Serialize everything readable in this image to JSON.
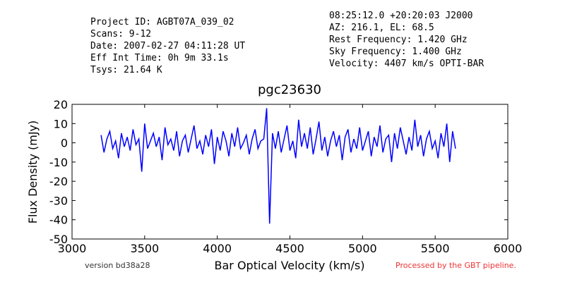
{
  "chart_data": {
    "type": "line",
    "header_left": [
      "Project ID: AGBT07A_039_02",
      "Scans: 9-12",
      "Date: 2007-02-27 04:11:28 UT",
      "Eff Int Time: 0h 9m 33.1s",
      "Tsys: 21.64 K"
    ],
    "header_right": [
      "08:25:12.0 +20:20:03 J2000",
      "AZ: 216.1, EL: 68.5",
      "Rest Frequency:   1.420 GHz",
      "Sky Frequency:    1.400 GHz",
      "Velocity: 4407 km/s OPTI-BAR"
    ],
    "title": "pgc23630",
    "xlabel": "Bar Optical Velocity (km/s)",
    "ylabel": "Flux Density (mJy)",
    "footer_left": "version bd38a28",
    "footer_right": "Processed by the GBT pipeline.",
    "xlim": [
      3000,
      6000
    ],
    "xticks": [
      3000,
      3500,
      4000,
      4500,
      5000,
      5500,
      6000
    ],
    "ylim": [
      -50,
      20
    ],
    "yticks": [
      -50,
      -40,
      -30,
      -20,
      -10,
      0,
      10,
      20
    ],
    "x": [
      3200,
      3220,
      3240,
      3260,
      3280,
      3300,
      3320,
      3340,
      3360,
      3380,
      3400,
      3420,
      3440,
      3460,
      3480,
      3500,
      3520,
      3540,
      3560,
      3580,
      3600,
      3620,
      3640,
      3660,
      3680,
      3700,
      3720,
      3740,
      3760,
      3780,
      3800,
      3820,
      3840,
      3860,
      3880,
      3900,
      3920,
      3940,
      3960,
      3980,
      4000,
      4020,
      4040,
      4060,
      4080,
      4100,
      4120,
      4140,
      4160,
      4180,
      4200,
      4220,
      4240,
      4260,
      4280,
      4300,
      4320,
      4340,
      4360,
      4380,
      4400,
      4420,
      4440,
      4460,
      4480,
      4500,
      4520,
      4540,
      4560,
      4580,
      4600,
      4620,
      4640,
      4660,
      4680,
      4700,
      4720,
      4740,
      4760,
      4780,
      4800,
      4820,
      4840,
      4860,
      4880,
      4900,
      4920,
      4940,
      4960,
      4980,
      5000,
      5020,
      5040,
      5060,
      5080,
      5100,
      5120,
      5140,
      5160,
      5180,
      5200,
      5220,
      5240,
      5260,
      5280,
      5300,
      5320,
      5340,
      5360,
      5380,
      5400,
      5420,
      5440,
      5460,
      5480,
      5500,
      5520,
      5540,
      5560,
      5580,
      5600,
      5620,
      5640
    ],
    "series": [
      {
        "name": "flux",
        "color": "#0000ff",
        "values": [
          4,
          -5,
          2,
          6,
          -3,
          1,
          -8,
          5,
          -2,
          3,
          -4,
          7,
          -1,
          2,
          -15,
          10,
          -3,
          1,
          5,
          -2,
          3,
          -9,
          8,
          -1,
          2,
          -4,
          6,
          -7,
          1,
          4,
          -5,
          2,
          9,
          -3,
          1,
          -6,
          4,
          -2,
          7,
          -11,
          3,
          -4,
          6,
          1,
          -7,
          5,
          -2,
          8,
          -3,
          0,
          4,
          -6,
          2,
          7,
          -3,
          1,
          2,
          18,
          -42,
          5,
          -3,
          6,
          -5,
          2,
          9,
          -4,
          1,
          -8,
          12,
          -2,
          5,
          -3,
          8,
          -6,
          2,
          11,
          -4,
          3,
          -7,
          1,
          6,
          -2,
          4,
          -9,
          3,
          7,
          -5,
          2,
          -3,
          8,
          -4,
          1,
          6,
          -7,
          3,
          -2,
          9,
          -5,
          2,
          4,
          -10,
          5,
          -3,
          8,
          1,
          -6,
          3,
          -4,
          12,
          -2,
          4,
          -7,
          2,
          6,
          -3,
          1,
          -8,
          5,
          -2,
          10,
          -10,
          6,
          -3
        ]
      }
    ]
  }
}
